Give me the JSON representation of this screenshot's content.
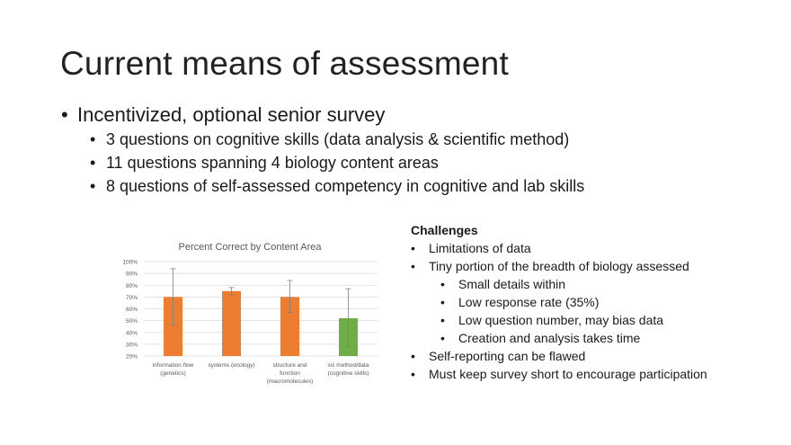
{
  "slide": {
    "title": "Current means of assessment",
    "bullets": [
      {
        "text": "Incentivized, optional senior survey",
        "sub": [
          "3 questions on cognitive skills (data analysis & scientific method)",
          "11 questions spanning 4 biology content areas",
          "8 questions of self-assessed competency in cognitive and lab skills"
        ]
      }
    ]
  },
  "challenges": {
    "heading": "Challenges",
    "items": [
      {
        "text": "Limitations of data",
        "level": 1
      },
      {
        "text": "Tiny portion of the breadth of biology assessed",
        "level": 1
      },
      {
        "text": "Small details within",
        "level": 2
      },
      {
        "text": "Low response rate (35%)",
        "level": 2
      },
      {
        "text": "Low question number, may bias data",
        "level": 2
      },
      {
        "text": "Creation and analysis takes time",
        "level": 2
      },
      {
        "text": "Self-reporting can be flawed",
        "level": 1
      },
      {
        "text": "Must keep survey short to encourage participation",
        "level": 1
      }
    ]
  },
  "chart_data": {
    "type": "bar",
    "title": "Percent Correct by Content Area",
    "categories": [
      [
        "information flow",
        "(genetics)"
      ],
      [
        "systems (ecology)"
      ],
      [
        "structure and",
        "function",
        "(macromolecules)"
      ],
      [
        "sci method/data",
        "(cognitive skills)"
      ]
    ],
    "values": [
      70,
      75,
      70,
      52
    ],
    "error_low": [
      46,
      72,
      57,
      28
    ],
    "error_high": [
      94,
      78,
      84,
      77
    ],
    "bar_colors": [
      "#ED7D31",
      "#ED7D31",
      "#ED7D31",
      "#70AD47"
    ],
    "yticks": [
      "20%",
      "30%",
      "40%",
      "50%",
      "60%",
      "70%",
      "80%",
      "90%",
      "100%"
    ],
    "ylim": [
      20,
      100
    ],
    "grid": true,
    "legend": false
  }
}
